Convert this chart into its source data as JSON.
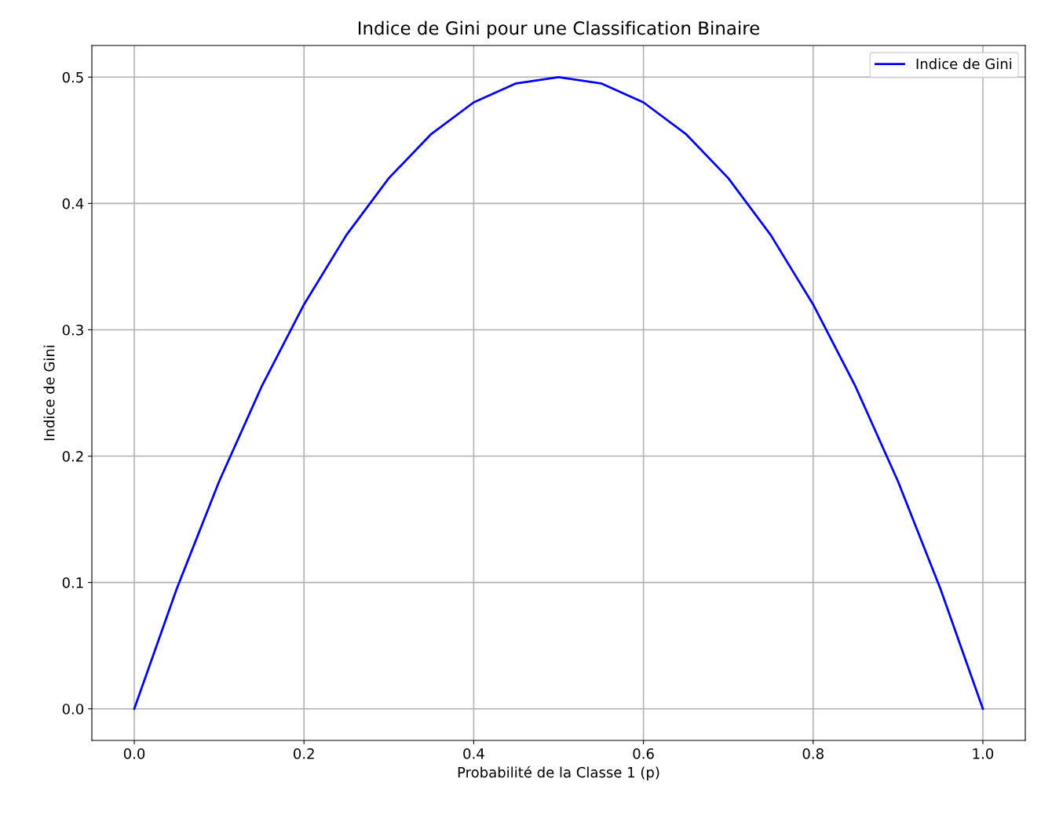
{
  "chart_data": {
    "type": "line",
    "title": "Indice de Gini pour une Classification Binaire",
    "xlabel": "Probabilité de la Classe 1 (p)",
    "ylabel": "Indice de Gini",
    "x": [
      0,
      0.05,
      0.1,
      0.15,
      0.2,
      0.25,
      0.3,
      0.35,
      0.4,
      0.45,
      0.5,
      0.55,
      0.6,
      0.65,
      0.7,
      0.75,
      0.8,
      0.85,
      0.9,
      0.95,
      1
    ],
    "series": [
      {
        "name": "Indice de Gini",
        "color": "#0000ff",
        "values": [
          0,
          0.095,
          0.18,
          0.255,
          0.32,
          0.375,
          0.42,
          0.455,
          0.48,
          0.495,
          0.5,
          0.495,
          0.48,
          0.455,
          0.42,
          0.375,
          0.32,
          0.255,
          0.18,
          0.095,
          0
        ]
      }
    ],
    "xlim": [
      -0.05,
      1.05
    ],
    "ylim": [
      -0.025,
      0.525
    ],
    "xticks": [
      {
        "value": 0,
        "label": "0.0"
      },
      {
        "value": 0.2,
        "label": "0.2"
      },
      {
        "value": 0.4,
        "label": "0.4"
      },
      {
        "value": 0.6,
        "label": "0.6"
      },
      {
        "value": 0.8,
        "label": "0.8"
      },
      {
        "value": 1,
        "label": "1.0"
      }
    ],
    "yticks": [
      {
        "value": 0,
        "label": "0.0"
      },
      {
        "value": 0.1,
        "label": "0.1"
      },
      {
        "value": 0.2,
        "label": "0.2"
      },
      {
        "value": 0.3,
        "label": "0.3"
      },
      {
        "value": 0.4,
        "label": "0.4"
      },
      {
        "value": 0.5,
        "label": "0.5"
      }
    ],
    "grid": true,
    "legend": "top right",
    "line_style": "solid",
    "marker": "none"
  }
}
